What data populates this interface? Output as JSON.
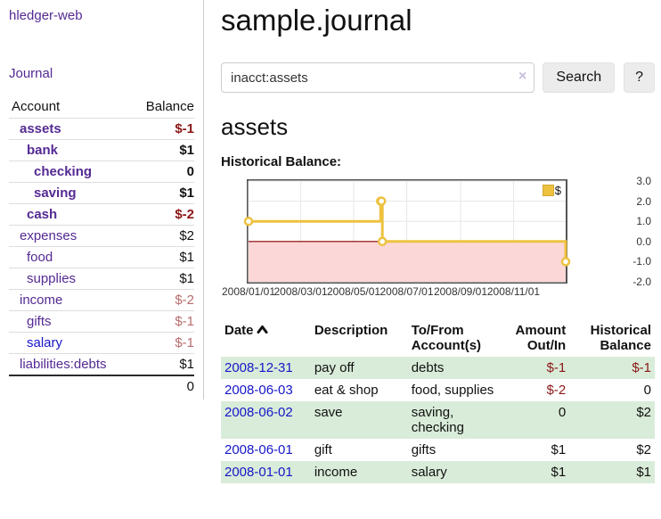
{
  "app": {
    "brand": "hledger-web",
    "nav_journal": "Journal"
  },
  "colors": {
    "link_purple": "#542a93",
    "link_blue": "#1616c8",
    "negative_strong": "#8b1717",
    "negative_soft": "#b96c6c",
    "row_green": "#d9ecd9",
    "series_yellow": "#edc240",
    "negative_region": "#fbd7d7",
    "zero_line": "#8b0000"
  },
  "sidebar": {
    "col_account": "Account",
    "col_balance": "Balance",
    "rows": [
      {
        "name": "assets",
        "balance": "$-1"
      },
      {
        "name": "bank",
        "balance": "$1"
      },
      {
        "name": "checking",
        "balance": "0"
      },
      {
        "name": "saving",
        "balance": "$1"
      },
      {
        "name": "cash",
        "balance": "$-2"
      },
      {
        "name": "expenses",
        "balance": "$2"
      },
      {
        "name": "food",
        "balance": "$1"
      },
      {
        "name": "supplies",
        "balance": "$1"
      },
      {
        "name": "income",
        "balance": "$-2"
      },
      {
        "name": "gifts",
        "balance": "$-1"
      },
      {
        "name": "salary",
        "balance": "$-1"
      },
      {
        "name": "liabilities:debts",
        "balance": "$1"
      }
    ],
    "total": "0"
  },
  "main": {
    "title": "sample.journal",
    "search": {
      "value": "inacct:assets",
      "clear": "×",
      "button": "Search",
      "help": "?"
    },
    "account_heading": "assets",
    "chart_label": "Historical Balance:"
  },
  "chart_data": {
    "type": "line",
    "title": "Historical Balance",
    "step": true,
    "xlim": [
      "2008-01-01",
      "2008-12-31"
    ],
    "ylim": [
      -2,
      3
    ],
    "y_ticks": [
      "3.0",
      "2.0",
      "1.0",
      "0.0",
      "-1.0",
      "-2.0"
    ],
    "x_ticks": [
      {
        "date": "2008-01-01",
        "label": "2008/01/01"
      },
      {
        "date": "2008-03-01",
        "label": "2008/03/01"
      },
      {
        "date": "2008-05-01",
        "label": "2008/05/01"
      },
      {
        "date": "2008-07-01",
        "label": "2008/07/01"
      },
      {
        "date": "2008-09-01",
        "label": "2008/09/01"
      },
      {
        "date": "2008-11-01",
        "label": "2008/11/01"
      }
    ],
    "series": [
      {
        "name": "$",
        "color": "#edc240",
        "points": [
          [
            "2008-01-01",
            1
          ],
          [
            "2008-06-01",
            2
          ],
          [
            "2008-06-02",
            2
          ],
          [
            "2008-06-03",
            0
          ],
          [
            "2008-12-31",
            -1
          ]
        ]
      }
    ],
    "legend": {
      "label": "$",
      "position": "top-right"
    },
    "negative_region_color": "#fbd7d7",
    "zero_line_color": "#8b0000",
    "grid": true
  },
  "register": {
    "headers": {
      "date": "Date",
      "description": "Description",
      "accounts": "To/From Account(s)",
      "amount": "Amount Out/In",
      "balance": "Historical Balance"
    },
    "rows": [
      {
        "date": "2008-12-31",
        "desc": "pay off",
        "accounts": "debts",
        "amount": "$-1",
        "balance": "$-1"
      },
      {
        "date": "2008-06-03",
        "desc": "eat & shop",
        "accounts": "food, supplies",
        "amount": "$-2",
        "balance": "0"
      },
      {
        "date": "2008-06-02",
        "desc": "save",
        "accounts": "saving, checking",
        "amount": "0",
        "balance": "$2"
      },
      {
        "date": "2008-06-01",
        "desc": "gift",
        "accounts": "gifts",
        "amount": "$1",
        "balance": "$2"
      },
      {
        "date": "2008-01-01",
        "desc": "income",
        "accounts": "salary",
        "amount": "$1",
        "balance": "$1"
      }
    ]
  }
}
